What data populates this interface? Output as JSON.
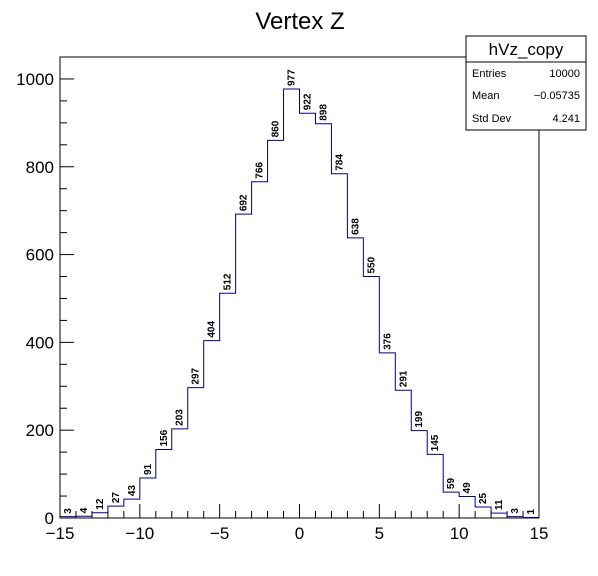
{
  "chart_data": {
    "type": "bar",
    "title": "Vertex Z",
    "xlabel": "",
    "ylabel": "",
    "xlim": [
      -15,
      15
    ],
    "ylim": [
      0,
      1050
    ],
    "x_major_ticks": [
      -15,
      -10,
      -5,
      0,
      5,
      10,
      15
    ],
    "y_major_ticks": [
      0,
      200,
      400,
      600,
      800,
      1000
    ],
    "bin_edges": [
      -15,
      -14,
      -13,
      -12,
      -11,
      -10,
      -9,
      -8,
      -7,
      -6,
      -5,
      -4,
      -3,
      -2,
      -1,
      0,
      1,
      2,
      3,
      4,
      5,
      6,
      7,
      8,
      9,
      10,
      11,
      12,
      13,
      14,
      15
    ],
    "values": [
      3,
      4,
      12,
      27,
      43,
      91,
      156,
      203,
      297,
      404,
      512,
      692,
      766,
      860,
      977,
      922,
      898,
      784,
      638,
      550,
      376,
      291,
      199,
      145,
      59,
      49,
      25,
      11,
      3,
      1
    ],
    "line_color": "#00008b",
    "stats_box": {
      "name": "hVz_copy",
      "rows": [
        {
          "key": "Entries",
          "value": "10000"
        },
        {
          "key": "Mean",
          "value": "−0.05735"
        },
        {
          "key": "Std Dev",
          "value": "4.241"
        }
      ]
    }
  }
}
